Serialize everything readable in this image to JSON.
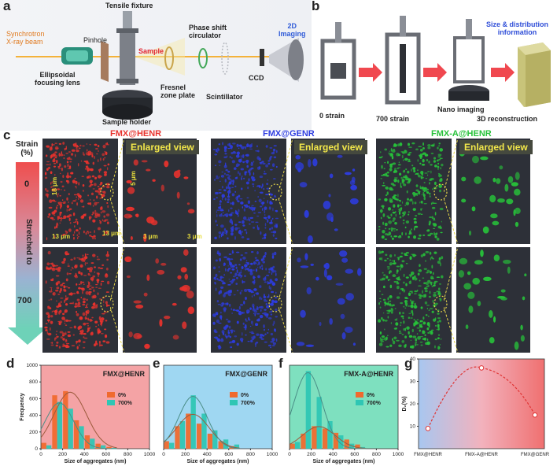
{
  "panel_labels": {
    "a": "a",
    "b": "b",
    "c": "c",
    "d": "d",
    "e": "e",
    "f": "f",
    "g": "g"
  },
  "panel_a": {
    "synchrotron": "Synchrotron\nX-ray beam",
    "ellipsoidal": "Ellipsoidal\nfocusing lens",
    "pinhole": "Pinhole",
    "tensile": "Tensile fixture",
    "sample": "Sample",
    "sample_holder": "Sample holder",
    "fresnel": "Fresnel\nzone plate",
    "phase_shift": "Phase shift\ncirculator",
    "scintillator": "Scintillator",
    "ccd": "CCD",
    "imaging_2d": "2D\nImaging"
  },
  "panel_b": {
    "s0": "0 strain",
    "s700": "700 strain",
    "nano": "Nano imaging",
    "recon": "3D reconstruction",
    "size_info": "Size & distribution\ninformation"
  },
  "panel_c": {
    "strain_title": "Strain\n(%)",
    "strain_0": "0",
    "stretched": "Stretched to",
    "strain_700": "700",
    "enlarged": "Enlarged view",
    "col_titles": [
      "FMX@HENR",
      "FMX@GENR",
      "FMX-A@HENR"
    ],
    "col_colors": [
      "#e8322d",
      "#2d3ce0",
      "#27c23a"
    ],
    "dim_18": "18 μm",
    "dim_13a": "13 μm",
    "dim_13b": "13 μm",
    "dim_5": "5 μm",
    "dim_3a": "3 μm",
    "dim_3b": "3 μm"
  },
  "chart_data": [
    {
      "type": "bar",
      "panel": "d",
      "title": "FMX@HENR",
      "xlabel": "Size of aggregates (nm)",
      "ylabel": "Frequency",
      "xlim": [
        0,
        1000
      ],
      "ylim": [
        0,
        1000
      ],
      "x_ticks": [
        0,
        200,
        400,
        600,
        800,
        1000
      ],
      "y_ticks": [
        0,
        200,
        400,
        600,
        800,
        1000
      ],
      "categories": [
        50,
        150,
        250,
        350,
        450,
        550,
        650
      ],
      "series": [
        {
          "name": "0%",
          "color": "#f06a2e",
          "values": [
            70,
            640,
            690,
            340,
            160,
            60,
            20
          ]
        },
        {
          "name": "700%",
          "color": "#2fc6b4",
          "values": [
            40,
            560,
            480,
            270,
            120,
            40,
            10
          ]
        }
      ],
      "legend": [
        "0%",
        "700%"
      ]
    },
    {
      "type": "bar",
      "panel": "e",
      "title": "FMX@GENR",
      "xlabel": "Size of aggregates (nm)",
      "ylabel": "",
      "xlim": [
        0,
        1000
      ],
      "ylim": [
        0,
        1000
      ],
      "x_ticks": [
        0,
        200,
        400,
        600,
        800,
        1000
      ],
      "categories": [
        50,
        150,
        250,
        350,
        450,
        550,
        650
      ],
      "series": [
        {
          "name": "0%",
          "color": "#f06a2e",
          "values": [
            90,
            270,
            420,
            300,
            180,
            90,
            30
          ]
        },
        {
          "name": "700%",
          "color": "#2fc6b4",
          "values": [
            70,
            330,
            640,
            420,
            220,
            110,
            50
          ]
        }
      ],
      "legend": [
        "0%",
        "700%"
      ]
    },
    {
      "type": "bar",
      "panel": "f",
      "title": "FMX-A@HENR",
      "xlabel": "Size of aggregates (nm)",
      "ylabel": "",
      "xlim": [
        0,
        1000
      ],
      "ylim": [
        0,
        1000
      ],
      "x_ticks": [
        0,
        200,
        400,
        600,
        800,
        1000
      ],
      "categories": [
        50,
        150,
        250,
        350,
        450,
        550,
        650
      ],
      "series": [
        {
          "name": "0%",
          "color": "#f06a2e",
          "values": [
            60,
            180,
            270,
            240,
            190,
            110,
            50
          ]
        },
        {
          "name": "700%",
          "color": "#2fc6b4",
          "values": [
            80,
            930,
            620,
            330,
            160,
            60,
            20
          ]
        }
      ],
      "legend": [
        "0%",
        "700%"
      ]
    },
    {
      "type": "line",
      "panel": "g",
      "ylabel": "D₂(%)",
      "categories": [
        "FMX@HENR",
        "FMX-A@HENR",
        "FMX@GENR"
      ],
      "values": [
        9,
        36,
        15
      ],
      "ylim": [
        0,
        40
      ],
      "y_ticks": [
        10,
        20,
        30,
        40
      ]
    }
  ]
}
